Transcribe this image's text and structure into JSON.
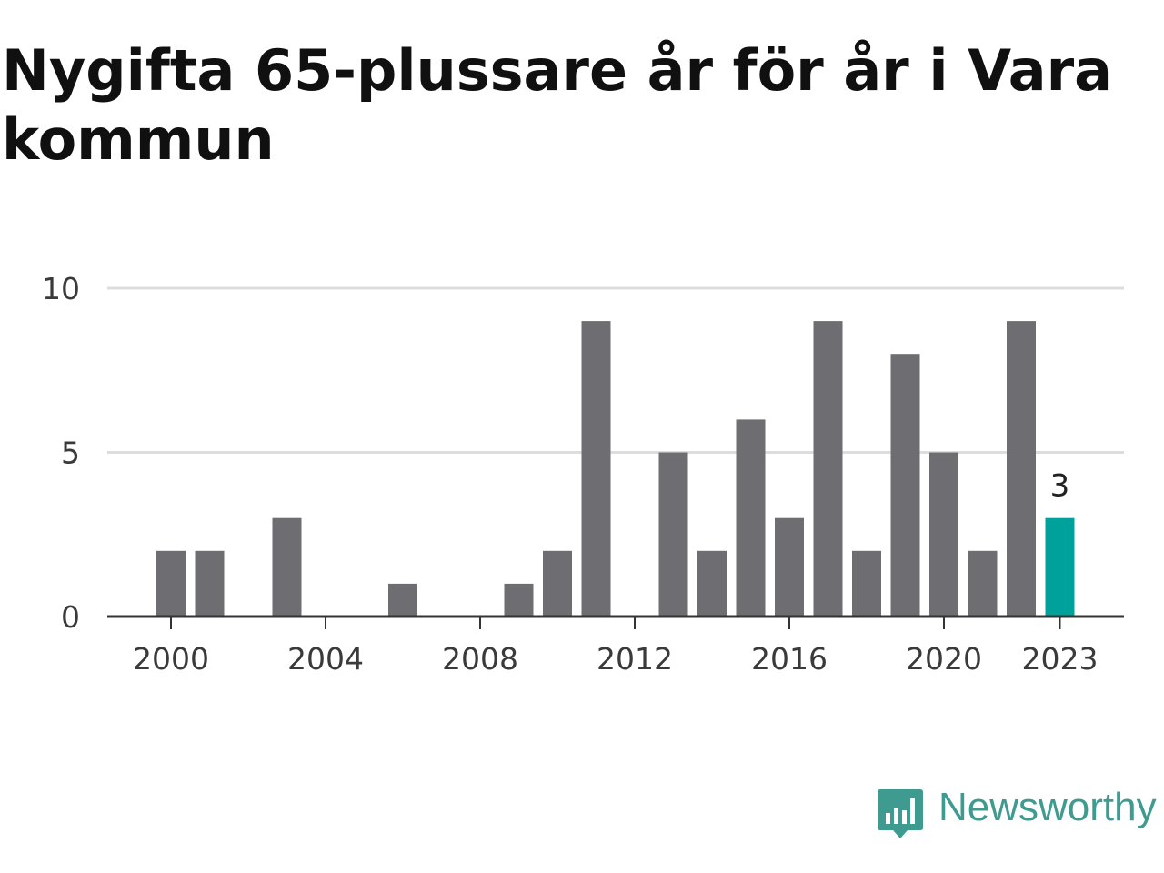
{
  "title": "Nygifta 65-plussare år för år i Vara kommun",
  "brand": {
    "name": "Newsworthy",
    "icon": "newsworthy-logo-icon",
    "color": "#3f9a8f"
  },
  "colors": {
    "bar": "#6e6d72",
    "highlight": "#00a19a",
    "grid": "#dddddd",
    "axis": "#333333"
  },
  "chart_data": {
    "type": "bar",
    "x": [
      2000,
      2001,
      2002,
      2003,
      2004,
      2005,
      2006,
      2007,
      2008,
      2009,
      2010,
      2011,
      2012,
      2013,
      2014,
      2015,
      2016,
      2017,
      2018,
      2019,
      2020,
      2021,
      2022,
      2023
    ],
    "values": [
      2,
      2,
      0,
      3,
      0,
      0,
      1,
      0,
      0,
      1,
      2,
      9,
      0,
      5,
      2,
      6,
      3,
      9,
      2,
      8,
      5,
      2,
      9,
      3
    ],
    "x_ticks": [
      "2000",
      "2004",
      "2008",
      "2012",
      "2016",
      "2020",
      "2023"
    ],
    "y_ticks": [
      "0",
      "5",
      "10"
    ],
    "ylim": [
      0,
      10
    ],
    "highlight": {
      "x": 2023,
      "label": "3"
    },
    "grid": true,
    "legend": "none"
  }
}
